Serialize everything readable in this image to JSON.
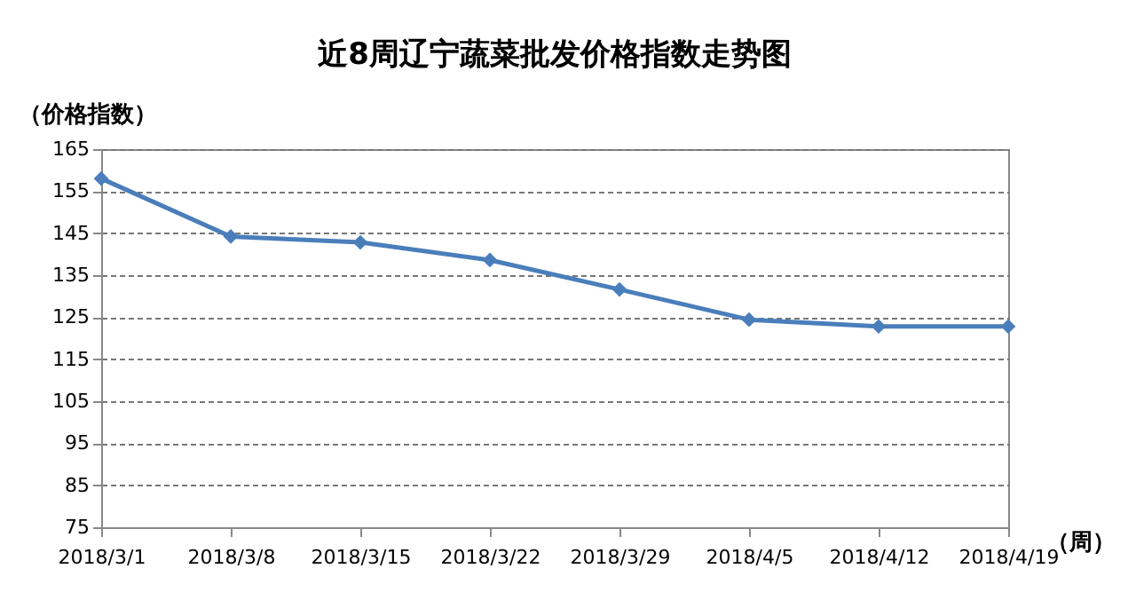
{
  "chart_data": {
    "type": "line",
    "title": "近8周辽宁蔬菜批发价格指数走势图",
    "xlabel": "（周）",
    "ylabel": "（价格指数）",
    "categories": [
      "2018/3/1",
      "2018/3/8",
      "2018/3/15",
      "2018/3/22",
      "2018/3/29",
      "2018/4/5",
      "2018/4/12",
      "2018/4/19"
    ],
    "series": [
      {
        "color": "#4a7ebb",
        "values": [
          158,
          144.2,
          142.8,
          138.6,
          131.6,
          124.4,
          122.8,
          122.8
        ]
      }
    ],
    "ylim": [
      75,
      165
    ],
    "yticks": [
      75,
      85,
      95,
      105,
      115,
      125,
      135,
      145,
      155,
      165
    ],
    "grid": "y",
    "legend": false,
    "marker": "diamond",
    "line_style": "solid"
  }
}
